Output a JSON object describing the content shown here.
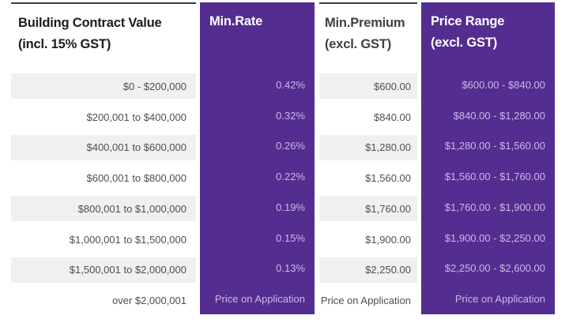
{
  "table": {
    "columns": {
      "contract_value": {
        "header_line1": "Building Contract Value",
        "header_line2": "(incl. 15% GST)"
      },
      "min_rate": {
        "header_line1": "Min.Rate",
        "header_line2": ""
      },
      "min_premium": {
        "header_line1": "Min.Premium",
        "header_line2": "(excl. GST)"
      },
      "price_range": {
        "header_line1": "Price Range",
        "header_line2": "(excl. GST)"
      }
    },
    "rows": [
      {
        "contract_value": "$0 - $200,000",
        "min_rate": "0.42%",
        "min_premium": "$600.00",
        "price_range": "$600.00 - $840.00"
      },
      {
        "contract_value": "$200,001 to $400,000",
        "min_rate": "0.32%",
        "min_premium": "$840.00",
        "price_range": "$840.00 - $1,280.00"
      },
      {
        "contract_value": "$400,001 to $600,000",
        "min_rate": "0.26%",
        "min_premium": "$1,280.00",
        "price_range": "$1,280.00 - $1,560.00"
      },
      {
        "contract_value": "$600,001 to $800,000",
        "min_rate": "0.22%",
        "min_premium": "$1,560.00",
        "price_range": "$1,560.00 - $1,760.00"
      },
      {
        "contract_value": "$800,001 to $1,000,000",
        "min_rate": "0.19%",
        "min_premium": "$1,760.00",
        "price_range": "$1,760.00 - $1,900.00"
      },
      {
        "contract_value": "$1,000,001 to $1,500,000",
        "min_rate": "0.15%",
        "min_premium": "$1,900.00",
        "price_range": "$1,900.00 - $2,250.00"
      },
      {
        "contract_value": "$1,500,001 to $2,000,000",
        "min_rate": "0.13%",
        "min_premium": "$2,250.00",
        "price_range": "$2,250.00 - $2,600.00"
      },
      {
        "contract_value": "over $2,000,001",
        "min_rate": "Price on Application",
        "min_premium": "Price on Application",
        "price_range": "Price on Application"
      }
    ],
    "colors": {
      "purple_column_background": "#542d91",
      "purple_column_text": "#cbb8e6",
      "stripe_gray": "#f0eff1",
      "light_column_text": "#4f4f4f",
      "header_black": "#1b1b1b",
      "header_gray": "#404040",
      "top_border": "#3c3c3c"
    }
  }
}
